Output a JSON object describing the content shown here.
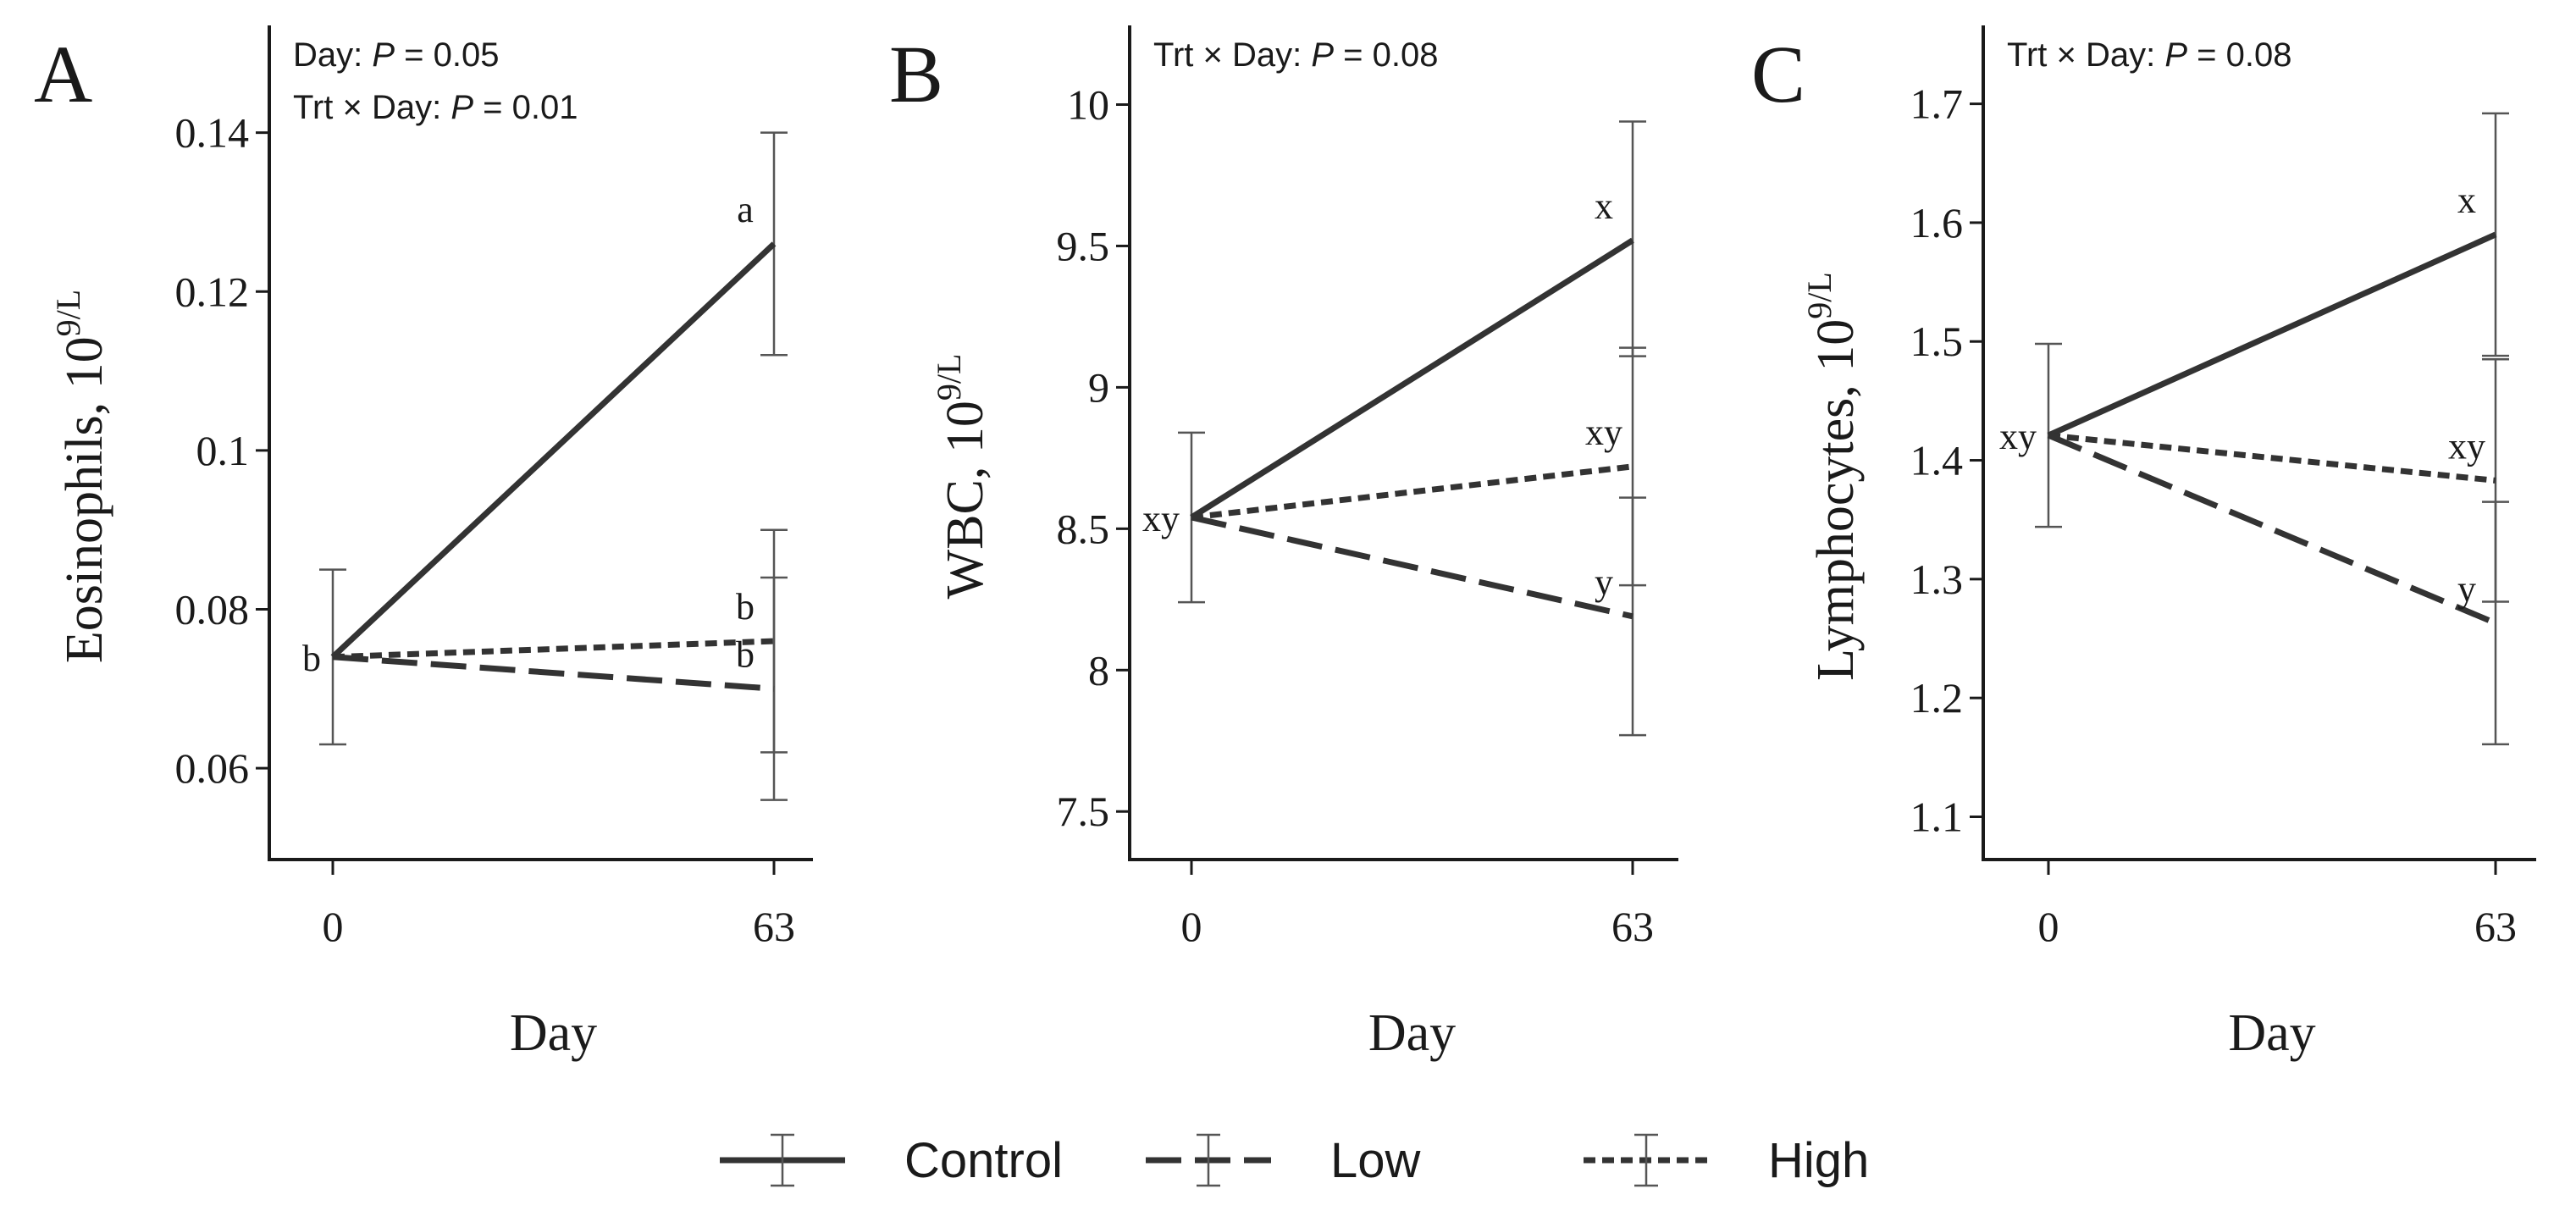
{
  "chart_data": [
    {
      "type": "line",
      "panel": "A",
      "x": [
        0,
        63
      ],
      "xlabel": "Day",
      "ylabel": "Eosinophils, 10",
      "ylabel_sup": "9/L",
      "ylim": [
        0.0485,
        0.1535
      ],
      "yticks": [
        0.06,
        0.08,
        0.1,
        0.12,
        0.14
      ],
      "ytick_labels": [
        "0.06",
        "0.08",
        "0.1",
        "0.12",
        "0.14"
      ],
      "annotations": [
        {
          "prefix": "Day: ",
          "p": "P",
          "suffix": " = 0.05"
        },
        {
          "prefix": "Trt × Day: ",
          "p": "P",
          "suffix": " = 0.01"
        }
      ],
      "series": [
        {
          "name": "Control",
          "values": [
            0.074,
            0.126
          ],
          "err_low": [
            0.063,
            0.112
          ],
          "err_high": [
            0.085,
            0.14
          ],
          "labels": [
            "b",
            "a"
          ]
        },
        {
          "name": "Low",
          "values": [
            0.074,
            0.07
          ],
          "err_low": [
            0.063,
            0.056
          ],
          "err_high": [
            0.085,
            0.084
          ],
          "labels": [
            "",
            "b"
          ]
        },
        {
          "name": "High",
          "values": [
            0.074,
            0.076
          ],
          "err_low": [
            0.063,
            0.062
          ],
          "err_high": [
            0.085,
            0.09
          ],
          "labels": [
            "",
            "b"
          ]
        }
      ]
    },
    {
      "type": "line",
      "panel": "B",
      "x": [
        0,
        63
      ],
      "xlabel": "Day",
      "ylabel": "WBC, 10",
      "ylabel_sup": "9/L",
      "ylim": [
        7.33,
        10.28
      ],
      "yticks": [
        7.5,
        8,
        8.5,
        9,
        9.5,
        10
      ],
      "ytick_labels": [
        "7.5",
        "8",
        "8.5",
        "9",
        "9.5",
        "10"
      ],
      "annotations": [
        {
          "prefix": "Trt × Day: ",
          "p": "P",
          "suffix": " = 0.08"
        }
      ],
      "series": [
        {
          "name": "Control",
          "values": [
            8.54,
            9.52
          ],
          "err_low": [
            8.24,
            9.11
          ],
          "err_high": [
            8.84,
            9.94
          ],
          "labels": [
            "xy",
            "x"
          ]
        },
        {
          "name": "Low",
          "values": [
            8.54,
            8.19
          ],
          "err_low": [
            8.24,
            7.77
          ],
          "err_high": [
            8.84,
            8.61
          ],
          "labels": [
            "",
            "y"
          ]
        },
        {
          "name": "High",
          "values": [
            8.54,
            8.72
          ],
          "err_low": [
            8.24,
            8.3
          ],
          "err_high": [
            8.84,
            9.14
          ],
          "labels": [
            "",
            "xy"
          ]
        }
      ]
    },
    {
      "type": "line",
      "panel": "C",
      "x": [
        0,
        63
      ],
      "xlabel": "Day",
      "ylabel": "Lymphocytes, 10",
      "ylabel_sup": "9/L",
      "ylim": [
        1.064,
        1.766
      ],
      "yticks": [
        1.1,
        1.2,
        1.3,
        1.4,
        1.5,
        1.6,
        1.7
      ],
      "ytick_labels": [
        "1.1",
        "1.2",
        "1.3",
        "1.4",
        "1.5",
        "1.6",
        "1.7"
      ],
      "annotations": [
        {
          "prefix": "Trt × Day: ",
          "p": "P",
          "suffix": " = 0.08"
        }
      ],
      "series": [
        {
          "name": "Control",
          "values": [
            1.421,
            1.59
          ],
          "err_low": [
            1.344,
            1.488
          ],
          "err_high": [
            1.498,
            1.692
          ],
          "labels": [
            "xy",
            "x"
          ]
        },
        {
          "name": "Low",
          "values": [
            1.421,
            1.263
          ],
          "err_low": [
            1.344,
            1.161
          ],
          "err_high": [
            1.498,
            1.365
          ],
          "labels": [
            "",
            "y"
          ]
        },
        {
          "name": "High",
          "values": [
            1.421,
            1.383
          ],
          "err_low": [
            1.344,
            1.281
          ],
          "err_high": [
            1.498,
            1.485
          ],
          "labels": [
            "",
            "xy"
          ]
        }
      ]
    }
  ],
  "legend": {
    "placement": "bottom-center",
    "items": [
      {
        "name": "Control",
        "style": "solid"
      },
      {
        "name": "Low",
        "style": "long-dash"
      },
      {
        "name": "High",
        "style": "short-dash"
      }
    ]
  },
  "colors": {
    "line": "#333333",
    "axis": "#1a1a1a",
    "errorbar": "#555555"
  }
}
